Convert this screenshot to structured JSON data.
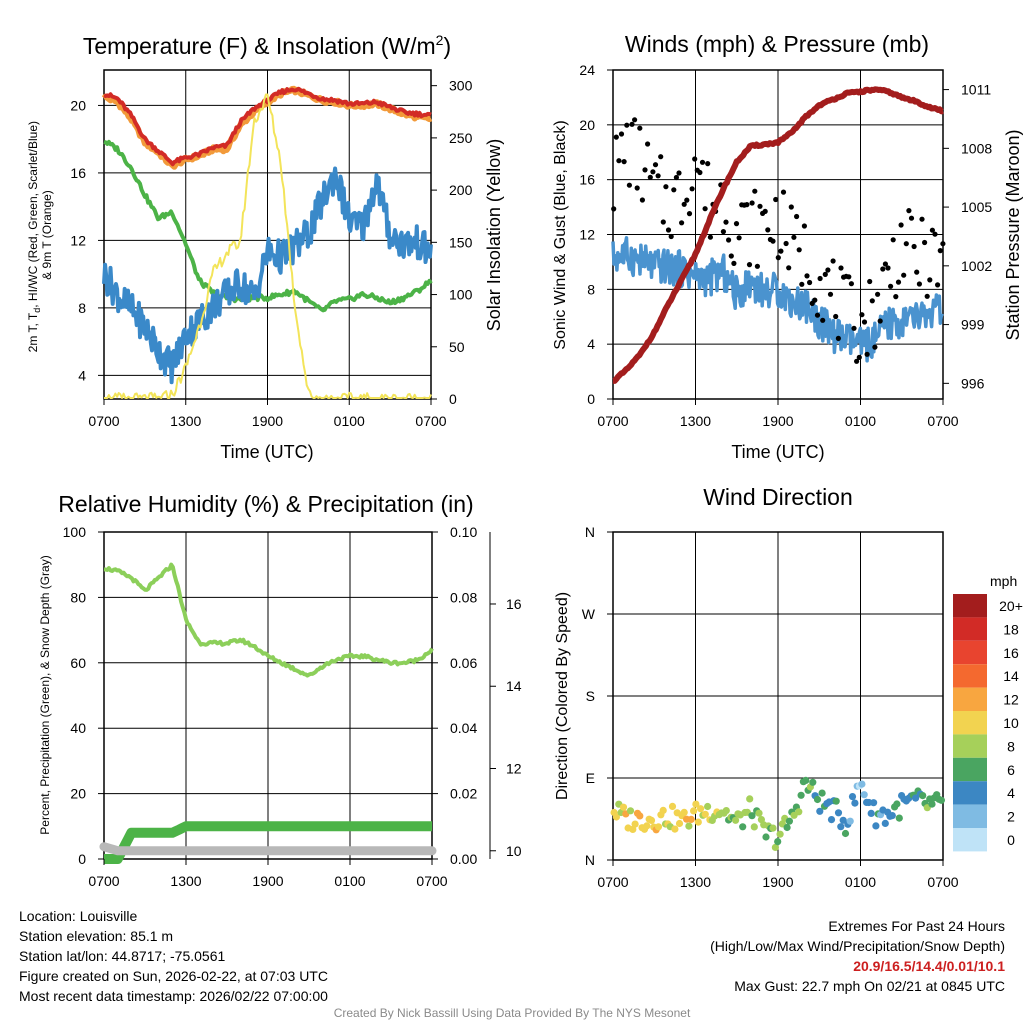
{
  "chart_data": [
    {
      "type": "line",
      "title": "Temperature (F) & Insolation (W/m²)",
      "xlabel": "Time (UTC)",
      "ylabel": "2m T, Td, HI/WC (Red, Green, Scarlet/Blue) & 9m T (Orange)",
      "y2label": "Solar Insolation (Yellow)",
      "xticks": [
        "0700",
        "1300",
        "1900",
        "0100",
        "0700"
      ],
      "ylim": [
        2.6,
        22.1
      ],
      "yticks": [
        4,
        8,
        12,
        16,
        20
      ],
      "y2lim": [
        0,
        315
      ],
      "y2ticks": [
        0,
        50,
        100,
        150,
        200,
        250,
        300
      ],
      "x_hours": [
        0,
        1,
        2,
        3,
        4,
        5,
        6,
        7,
        8,
        9,
        10,
        11,
        12,
        13,
        14,
        15,
        16,
        17,
        18,
        19,
        20,
        21,
        22,
        23,
        24
      ],
      "series": [
        {
          "name": "9m T",
          "color": "#f29a3a",
          "values": [
            20.5,
            20.2,
            19.2,
            17.8,
            17.2,
            16.4,
            16.8,
            17.0,
            17.4,
            17.4,
            18.8,
            19.6,
            20.2,
            20.7,
            20.9,
            20.6,
            20.3,
            20.2,
            20.0,
            20.0,
            20.1,
            19.8,
            19.5,
            19.3,
            19.2
          ]
        },
        {
          "name": "2m T",
          "color": "#d22b26",
          "values": [
            20.7,
            20.4,
            19.4,
            18.0,
            17.3,
            16.6,
            16.9,
            17.1,
            17.5,
            17.6,
            19.0,
            19.8,
            20.3,
            20.8,
            21.0,
            20.7,
            20.4,
            20.3,
            20.1,
            20.1,
            20.2,
            19.9,
            19.6,
            19.5,
            19.4
          ]
        },
        {
          "name": "Td",
          "color": "#4cb347",
          "values": [
            17.9,
            17.4,
            16.3,
            14.7,
            13.3,
            13.7,
            11.8,
            9.6,
            8.9,
            8.6,
            8.5,
            8.6,
            8.6,
            8.8,
            9.0,
            8.4,
            7.8,
            8.4,
            8.5,
            8.8,
            8.6,
            8.3,
            8.6,
            9.0,
            9.6
          ]
        },
        {
          "name": "HI/WC",
          "color": "#3a89c9",
          "values": [
            10.0,
            8.8,
            7.9,
            6.9,
            5.5,
            4.5,
            6.4,
            7.2,
            8.1,
            8.8,
            9.5,
            8.6,
            11.3,
            11.0,
            11.6,
            12.4,
            14.3,
            16.0,
            13.1,
            12.8,
            15.6,
            12.3,
            11.8,
            11.9,
            11.2
          ]
        },
        {
          "name": "Solar Insolation",
          "color": "#f3e45a",
          "axis": "y2",
          "values": [
            0,
            0,
            0,
            0,
            0,
            4,
            30,
            70,
            120,
            140,
            150,
            265,
            290,
            225,
            90,
            5,
            0,
            0,
            0,
            0,
            0,
            0,
            0,
            0,
            0
          ]
        }
      ]
    },
    {
      "type": "line",
      "title": "Winds (mph) & Pressure (mb)",
      "xlabel": "Time (UTC)",
      "ylabel": "Sonic Wind & Gust (Blue, Black)",
      "y2label": "Station Pressure (Maroon)",
      "xticks": [
        "0700",
        "1300",
        "1900",
        "0100",
        "0700"
      ],
      "ylim": [
        0,
        24
      ],
      "yticks": [
        0,
        4,
        8,
        12,
        16,
        20,
        24
      ],
      "y2lim": [
        995.2,
        1012.0
      ],
      "y2ticks": [
        996,
        999,
        1002,
        1005,
        1008,
        1011
      ],
      "x_hours": [
        0,
        1,
        2,
        3,
        4,
        5,
        6,
        7,
        8,
        9,
        10,
        11,
        12,
        13,
        14,
        15,
        16,
        17,
        18,
        19,
        20,
        21,
        22,
        23,
        24
      ],
      "series": [
        {
          "name": "Sonic Wind",
          "color": "#4a93cf",
          "values": [
            10.4,
            10.5,
            10.1,
            9.7,
            9.6,
            9.5,
            8.9,
            8.8,
            9.3,
            7.6,
            8.6,
            7.8,
            8.0,
            7.1,
            6.9,
            5.7,
            4.7,
            4.3,
            3.9,
            4.2,
            5.5,
            5.6,
            5.9,
            6.2,
            6.5
          ]
        },
        {
          "name": "Gust",
          "color": "#000000",
          "marker": "dot",
          "values": [
            16.1,
            18.5,
            17.2,
            15.2,
            14.3,
            14.8,
            17.6,
            14.2,
            14.7,
            12.3,
            12.5,
            12.6,
            13.1,
            11.1,
            10.5,
            8.9,
            7.5,
            6.1,
            5.3,
            6.5,
            9.0,
            11.4,
            10.2,
            10.3,
            9.5
          ]
        },
        {
          "name": "Station Pressure",
          "color": "#a31d1d",
          "axis": "y2",
          "values": [
            996.1,
            996.7,
            997.5,
            998.6,
            1000.0,
            1001.3,
            1002.6,
            1004.3,
            1005.9,
            1007.3,
            1008.1,
            1008.2,
            1008.3,
            1008.8,
            1009.6,
            1010.2,
            1010.5,
            1010.8,
            1010.9,
            1011.0,
            1010.9,
            1010.6,
            1010.4,
            1010.1,
            1009.9
          ]
        }
      ]
    },
    {
      "type": "line",
      "title": "Relative Humidity (%) & Precipitation (in)",
      "xlabel": "",
      "ylabel": "Percent, Precipitation (Green), & Snow Depth (Gray)",
      "xticks": [
        "0700",
        "1300",
        "1900",
        "0100",
        "0700"
      ],
      "ylim": [
        0,
        100
      ],
      "yticks": [
        0,
        20,
        40,
        60,
        80,
        100
      ],
      "y2lim": [
        0,
        0.1
      ],
      "y2ticks": [
        "0.00",
        "0.02",
        "0.04",
        "0.06",
        "0.08",
        "0.10"
      ],
      "y3lim": [
        9.8,
        17.75
      ],
      "y3ticks": [
        10,
        12,
        14,
        16
      ],
      "x_hours": [
        0,
        1,
        2,
        3,
        4,
        5,
        6,
        7,
        8,
        9,
        10,
        11,
        12,
        13,
        14,
        15,
        16,
        17,
        18,
        19,
        20,
        21,
        22,
        23,
        24
      ],
      "series": [
        {
          "name": "Relative Humidity",
          "color": "#8ccf5a",
          "values": [
            89,
            88,
            86,
            82,
            86,
            90,
            73,
            66,
            66,
            66,
            67,
            65,
            62,
            60,
            58,
            56,
            59,
            61,
            62,
            62,
            61,
            60,
            60,
            61,
            64
          ]
        },
        {
          "name": "Precipitation",
          "color": "#4cb347",
          "axis": "y2",
          "values": [
            0.0,
            0.0,
            0.008,
            0.008,
            0.008,
            0.008,
            0.01,
            0.01,
            0.01,
            0.01,
            0.01,
            0.01,
            0.01,
            0.01,
            0.01,
            0.01,
            0.01,
            0.01,
            0.01,
            0.01,
            0.01,
            0.01,
            0.01,
            0.01,
            0.01
          ]
        },
        {
          "name": "Snow Depth",
          "color": "#b8b8b8",
          "axis": "y3",
          "values": [
            10.1,
            10.0,
            10.0,
            10.0,
            10.0,
            10.0,
            10.0,
            10.0,
            10.0,
            10.0,
            10.0,
            10.0,
            10.0,
            10.0,
            10.0,
            10.0,
            10.0,
            10.0,
            10.0,
            10.0,
            10.0,
            10.0,
            10.0,
            10.0,
            10.0
          ]
        }
      ]
    },
    {
      "type": "scatter",
      "title": "Wind Direction",
      "ylabel": "Direction (Colored By Speed)",
      "xticks": [
        "0700",
        "1300",
        "1900",
        "0100",
        "0700"
      ],
      "ylim": [
        0,
        360
      ],
      "yticks": [
        {
          "value": 0,
          "label": "N"
        },
        {
          "value": 90,
          "label": "E"
        },
        {
          "value": 180,
          "label": "S"
        },
        {
          "value": 270,
          "label": "W"
        },
        {
          "value": 360,
          "label": "N"
        }
      ],
      "x_hours": [
        0,
        1,
        2,
        3,
        4,
        5,
        6,
        7,
        8,
        9,
        10,
        11,
        12,
        13,
        14,
        15,
        16,
        17,
        18,
        19,
        20,
        21,
        22,
        23,
        24
      ],
      "direction_deg": [
        55,
        45,
        45,
        45,
        48,
        42,
        50,
        55,
        55,
        40,
        55,
        30,
        25,
        45,
        85,
        65,
        55,
        40,
        85,
        50,
        50,
        60,
        65,
        60,
        60
      ],
      "speed_mph": [
        11,
        11,
        12,
        11,
        10,
        11,
        11,
        10,
        9,
        9,
        8,
        8,
        8,
        8,
        8,
        6,
        6,
        5,
        3,
        5,
        5,
        6,
        6,
        7,
        7
      ],
      "legend": {
        "title": "mph",
        "labels": [
          "20+",
          "18",
          "16",
          "14",
          "12",
          "10",
          "8",
          "6",
          "4",
          "2",
          "0"
        ],
        "colors": [
          "#a31d1d",
          "#d22b26",
          "#e8442f",
          "#f4692f",
          "#f8a640",
          "#f2d350",
          "#a6d05a",
          "#4aa561",
          "#3c87c3",
          "#7fbbe3",
          "#bfe3f7"
        ]
      }
    }
  ],
  "footer": {
    "location": "Location: Louisville",
    "elevation": "Station elevation: 85.1 m",
    "latlon": "Station lat/lon: 44.8717; -75.0561",
    "created": "Figure created on Sun, 2026-02-22, at 07:03 UTC",
    "recent": "Most recent data timestamp: 2026/02/22 07:00:00",
    "extremes_title": "Extremes For Past 24 Hours",
    "extremes_desc": "(High/Low/Max Wind/Precipitation/Snow Depth)",
    "extremes_values": "20.9/16.5/14.4/0.01/10.1",
    "max_gust": "Max Gust: 22.7 mph On 02/21 at 0845 UTC",
    "credit": "Created By Nick Bassill Using Data Provided By The NYS Mesonet"
  }
}
